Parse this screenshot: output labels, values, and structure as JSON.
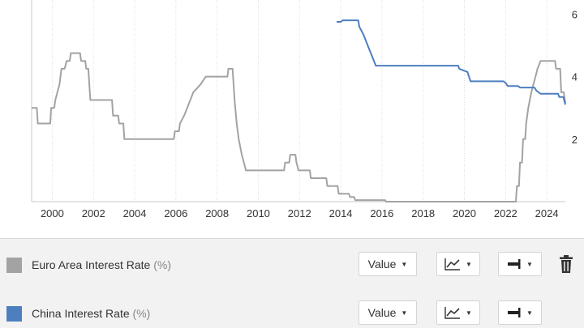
{
  "chart_data": {
    "type": "line",
    "x_ticks": [
      "2000",
      "2002",
      "2004",
      "2006",
      "2008",
      "2010",
      "2012",
      "2014",
      "2016",
      "2018",
      "2020",
      "2022",
      "2024"
    ],
    "y_ticks": [
      "2",
      "4",
      "6"
    ],
    "xlim": [
      1999.0,
      2024.9
    ],
    "ylim": [
      0,
      6.45
    ],
    "y_axis_side": "right",
    "grid": "vertical dotted",
    "series": [
      {
        "name": "Euro Area Interest Rate",
        "color": "#a3a3a3",
        "points": [
          [
            1999.0,
            3.0
          ],
          [
            1999.25,
            3.0
          ],
          [
            1999.3,
            2.5
          ],
          [
            1999.9,
            2.5
          ],
          [
            1999.95,
            3.0
          ],
          [
            2000.1,
            3.0
          ],
          [
            2000.15,
            3.25
          ],
          [
            2000.25,
            3.5
          ],
          [
            2000.35,
            3.75
          ],
          [
            2000.45,
            4.25
          ],
          [
            2000.6,
            4.25
          ],
          [
            2000.7,
            4.5
          ],
          [
            2000.85,
            4.5
          ],
          [
            2000.9,
            4.75
          ],
          [
            2001.35,
            4.75
          ],
          [
            2001.4,
            4.5
          ],
          [
            2001.6,
            4.5
          ],
          [
            2001.65,
            4.25
          ],
          [
            2001.75,
            4.25
          ],
          [
            2001.8,
            3.75
          ],
          [
            2001.85,
            3.25
          ],
          [
            2002.9,
            3.25
          ],
          [
            2002.95,
            2.75
          ],
          [
            2003.2,
            2.75
          ],
          [
            2003.25,
            2.5
          ],
          [
            2003.45,
            2.5
          ],
          [
            2003.5,
            2.0
          ],
          [
            2005.9,
            2.0
          ],
          [
            2005.95,
            2.25
          ],
          [
            2006.15,
            2.25
          ],
          [
            2006.2,
            2.5
          ],
          [
            2006.4,
            2.75
          ],
          [
            2006.55,
            3.0
          ],
          [
            2006.7,
            3.25
          ],
          [
            2006.85,
            3.5
          ],
          [
            2007.2,
            3.75
          ],
          [
            2007.45,
            4.0
          ],
          [
            2008.5,
            4.0
          ],
          [
            2008.55,
            4.25
          ],
          [
            2008.75,
            4.25
          ],
          [
            2008.8,
            3.75
          ],
          [
            2008.85,
            3.25
          ],
          [
            2008.95,
            2.5
          ],
          [
            2009.05,
            2.0
          ],
          [
            2009.2,
            1.5
          ],
          [
            2009.3,
            1.25
          ],
          [
            2009.4,
            1.0
          ],
          [
            2011.25,
            1.0
          ],
          [
            2011.3,
            1.25
          ],
          [
            2011.5,
            1.25
          ],
          [
            2011.55,
            1.5
          ],
          [
            2011.8,
            1.5
          ],
          [
            2011.85,
            1.25
          ],
          [
            2011.95,
            1.0
          ],
          [
            2012.5,
            1.0
          ],
          [
            2012.55,
            0.75
          ],
          [
            2013.3,
            0.75
          ],
          [
            2013.35,
            0.5
          ],
          [
            2013.85,
            0.5
          ],
          [
            2013.9,
            0.25
          ],
          [
            2014.4,
            0.25
          ],
          [
            2014.45,
            0.15
          ],
          [
            2014.65,
            0.15
          ],
          [
            2014.7,
            0.05
          ],
          [
            2016.15,
            0.05
          ],
          [
            2016.2,
            0.0
          ],
          [
            2022.5,
            0.0
          ],
          [
            2022.55,
            0.5
          ],
          [
            2022.65,
            0.5
          ],
          [
            2022.7,
            1.25
          ],
          [
            2022.8,
            1.25
          ],
          [
            2022.85,
            2.0
          ],
          [
            2022.95,
            2.0
          ],
          [
            2023.0,
            2.5
          ],
          [
            2023.1,
            3.0
          ],
          [
            2023.25,
            3.5
          ],
          [
            2023.35,
            3.75
          ],
          [
            2023.45,
            4.0
          ],
          [
            2023.55,
            4.25
          ],
          [
            2023.7,
            4.5
          ],
          [
            2024.4,
            4.5
          ],
          [
            2024.45,
            4.25
          ],
          [
            2024.65,
            4.25
          ],
          [
            2024.7,
            3.5
          ],
          [
            2024.82,
            3.5
          ],
          [
            2024.9,
            3.15
          ]
        ]
      },
      {
        "name": "China Interest Rate",
        "color": "#4d7fbf",
        "points": [
          [
            2013.8,
            5.75
          ],
          [
            2014.0,
            5.75
          ],
          [
            2014.1,
            5.8
          ],
          [
            2014.85,
            5.8
          ],
          [
            2014.9,
            5.6
          ],
          [
            2015.1,
            5.35
          ],
          [
            2015.25,
            5.1
          ],
          [
            2015.4,
            4.85
          ],
          [
            2015.55,
            4.6
          ],
          [
            2015.7,
            4.35
          ],
          [
            2019.0,
            4.35
          ],
          [
            2019.1,
            4.35
          ],
          [
            2019.7,
            4.35
          ],
          [
            2019.75,
            4.25
          ],
          [
            2019.95,
            4.2
          ],
          [
            2020.15,
            4.15
          ],
          [
            2020.3,
            3.85
          ],
          [
            2021.9,
            3.85
          ],
          [
            2022.0,
            3.8
          ],
          [
            2022.1,
            3.7
          ],
          [
            2022.6,
            3.7
          ],
          [
            2022.7,
            3.65
          ],
          [
            2023.4,
            3.65
          ],
          [
            2023.5,
            3.55
          ],
          [
            2023.7,
            3.45
          ],
          [
            2024.55,
            3.45
          ],
          [
            2024.6,
            3.35
          ],
          [
            2024.8,
            3.35
          ],
          [
            2024.9,
            3.1
          ]
        ]
      }
    ]
  },
  "panel": {
    "rows": [
      {
        "name": "Euro Area Interest Rate",
        "unit": "(%)",
        "color": "#a3a3a3",
        "value_label": "Value",
        "line_icon": "line-chart-icon",
        "axis_icon": "axis-right-icon",
        "trash_icon": "trash-icon",
        "has_trash": true
      },
      {
        "name": "China Interest Rate",
        "unit": "(%)",
        "color": "#4d7fbf",
        "value_label": "Value",
        "line_icon": "line-chart-icon",
        "axis_icon": "axis-right-icon",
        "has_trash": false
      }
    ]
  }
}
